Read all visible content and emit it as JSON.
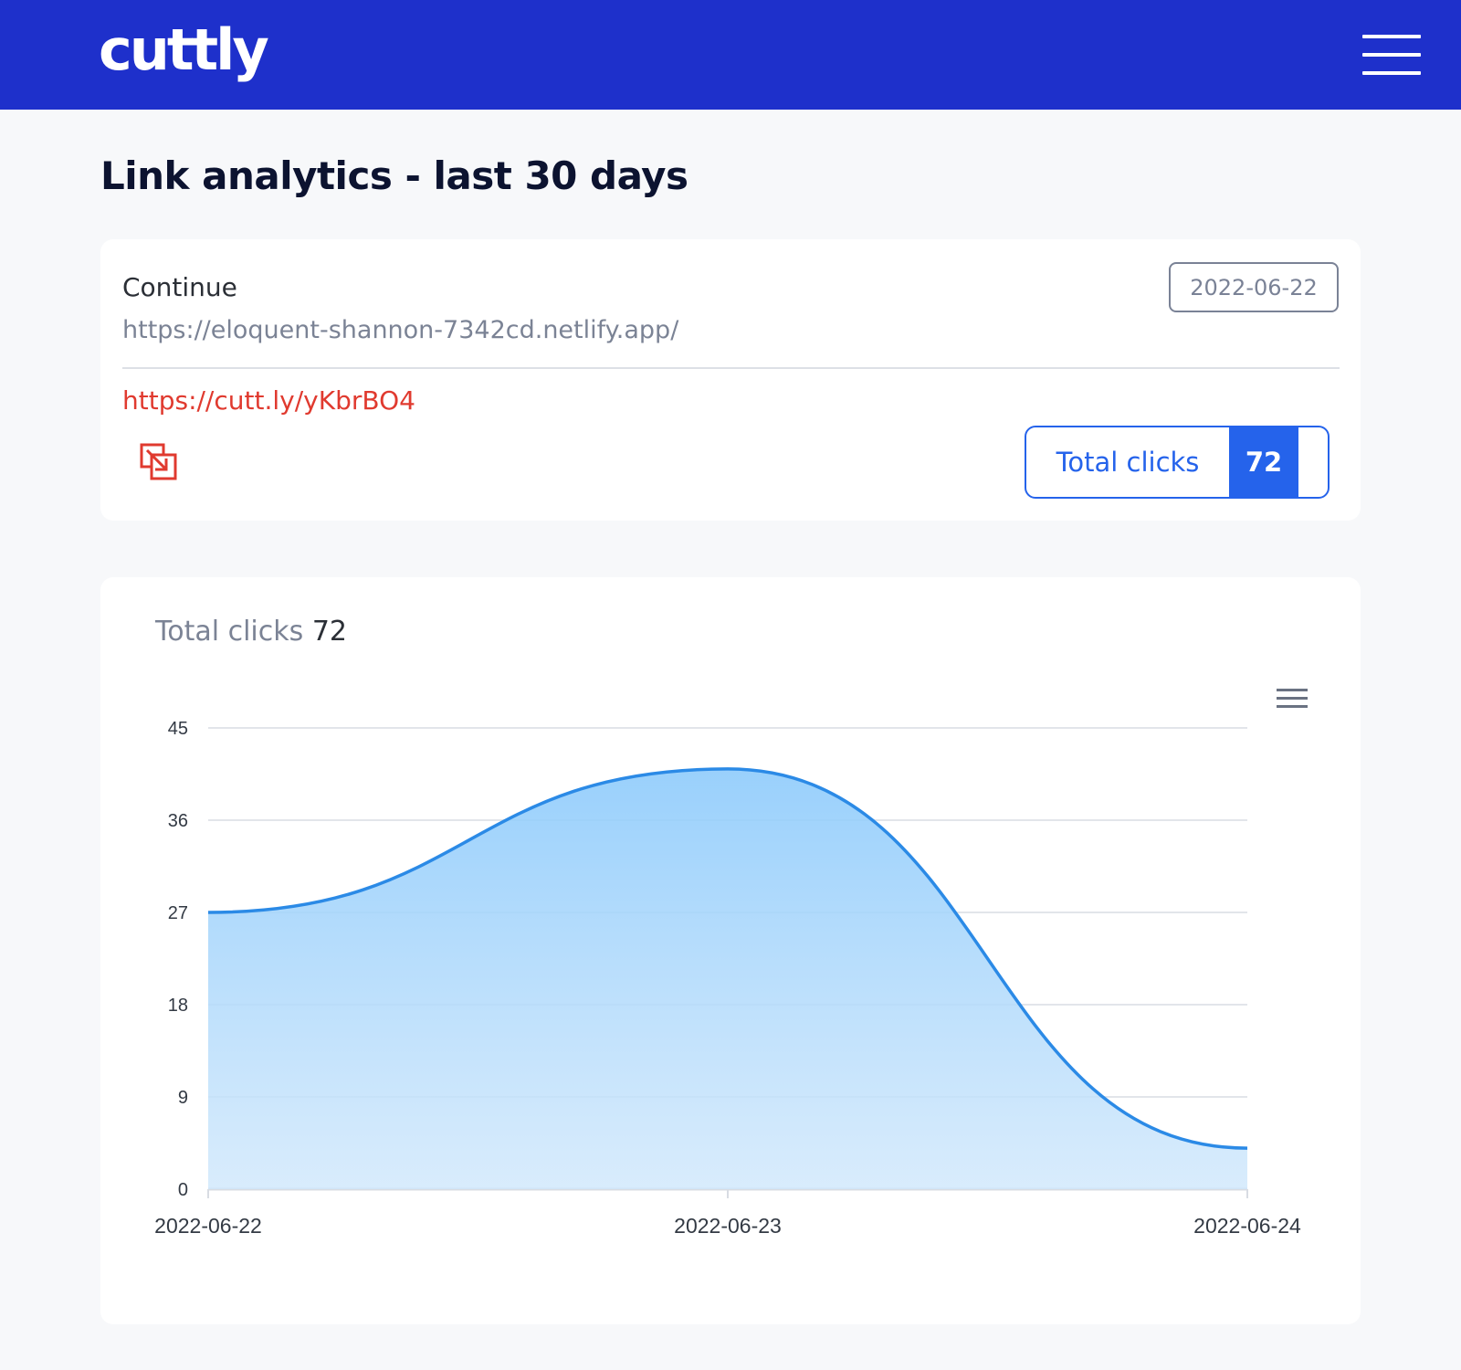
{
  "header": {
    "logo": "cuttly"
  },
  "page": {
    "title": "Link analytics - last 30 days"
  },
  "link": {
    "name": "Continue",
    "date": "2022-06-22",
    "long_url": "https://eloquent-shannon-7342cd.netlify.app/",
    "short_url": "https://cutt.ly/yKbrBO4",
    "copy_icon": "copy-icon",
    "clicks_label": "Total clicks",
    "clicks_count": "72"
  },
  "chart_section": {
    "title_label": "Total clicks",
    "title_count": "72",
    "menu_icon": "hamburger-icon"
  },
  "colors": {
    "navbar": "#1e30cb",
    "accent": "#2563eb",
    "short_url": "#e03a2f",
    "series_line": "#2b8ae6"
  },
  "chart_data": {
    "type": "area",
    "x": [
      "2022-06-22",
      "2022-06-23",
      "2022-06-24"
    ],
    "series": [
      {
        "values": [
          27,
          41,
          4
        ]
      }
    ],
    "ylim": [
      0,
      45
    ],
    "yticks": [
      0,
      9,
      18,
      27,
      36,
      45
    ],
    "grid": true,
    "smooth": true
  }
}
